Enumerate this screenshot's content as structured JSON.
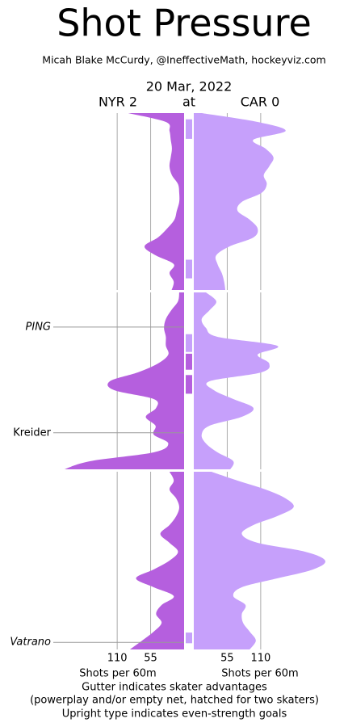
{
  "chart_data": {
    "type": "area",
    "title": "Shot Pressure",
    "subtitle": "Micah Blake McCurdy, @IneffectiveMath, hockeyviz.com",
    "date": "20 Mar, 2022",
    "separator": "at",
    "xlabel": "Shots per 60m",
    "notes": [
      "Gutter indicates skater advantages",
      "(powerplay and/or empty net, hatched for two skaters)",
      "Upright type indicates even-strength goals"
    ],
    "xlim": [
      0,
      300
    ],
    "xticks": [
      55,
      110
    ],
    "ylim": [
      0,
      60
    ],
    "series": [
      {
        "name": "NYR 2",
        "color": "#b55fde",
        "advantages": [
          [
            26.9,
            28.7
          ],
          [
            29.3,
            31.4
          ]
        ]
      },
      {
        "name": "CAR 0",
        "color": "#c6a0fb",
        "advantages": [
          [
            0.7,
            2.9
          ],
          [
            16.5,
            18.6
          ],
          [
            24.7,
            26.7
          ],
          [
            58.1,
            59.3
          ]
        ]
      }
    ],
    "periods": [
      {
        "x": [
          0,
          1,
          2,
          3,
          4,
          5,
          6,
          7,
          8,
          9,
          10,
          11,
          12,
          13,
          14,
          15,
          16,
          17,
          18,
          19,
          20
        ],
        "series": [
          {
            "values": [
              92,
              30,
              24,
              22,
              20,
              22,
              24,
              20,
              10,
              8,
              8,
              12,
              16,
              28,
              43,
              65,
              47,
              17,
              24,
              17,
              21
            ]
          },
          {
            "values": [
              13,
              105,
              151,
              98,
              118,
              131,
              124,
              115,
              120,
              111,
              79,
              72,
              92,
              105,
              98,
              59,
              37,
              39,
              46,
              50,
              52
            ]
          }
        ]
      },
      {
        "x": [
          20,
          21,
          22,
          23,
          24,
          25,
          26,
          27,
          28,
          29,
          30,
          31,
          32,
          33,
          34,
          35,
          36,
          37,
          38,
          39,
          40
        ],
        "series": [
          {
            "values": [
              8,
              10,
              21,
              30,
              33,
              30,
              30,
              26,
              43,
              76,
              122,
              115,
              50,
              46,
              63,
              47,
              50,
              26,
              50,
              155,
              200
            ]
          },
          {
            "values": [
              20,
              37,
              26,
              13,
              20,
              39,
              137,
              105,
              124,
              111,
              26,
              33,
              65,
              98,
              79,
              26,
              13,
              20,
              39,
              65,
              59
            ]
          }
        ]
      },
      {
        "x": [
          40,
          41,
          42,
          43,
          44,
          45,
          46,
          47,
          48,
          49,
          50,
          51,
          52,
          53,
          54,
          55,
          56,
          57,
          58,
          59,
          60
        ],
        "series": [
          {
            "values": [
              24,
              17,
              24,
              13,
              8,
              13,
              24,
              39,
              24,
              10,
              24,
              50,
              79,
              50,
              17,
              37,
              46,
              37,
              50,
              69,
              89
            ]
          },
          {
            "values": [
              29,
              72,
              118,
              151,
              164,
              137,
              98,
              79,
              105,
              183,
              216,
              196,
              137,
              79,
              65,
              85,
              79,
              81,
              92,
              102,
              92
            ]
          }
        ]
      }
    ],
    "goals": [
      {
        "time": 23.9,
        "label": "PING",
        "even_strength": false
      },
      {
        "time": 35.8,
        "label": "Kreider",
        "even_strength": true
      },
      {
        "time": 59.2,
        "label": "Vatrano",
        "even_strength": false
      }
    ]
  }
}
